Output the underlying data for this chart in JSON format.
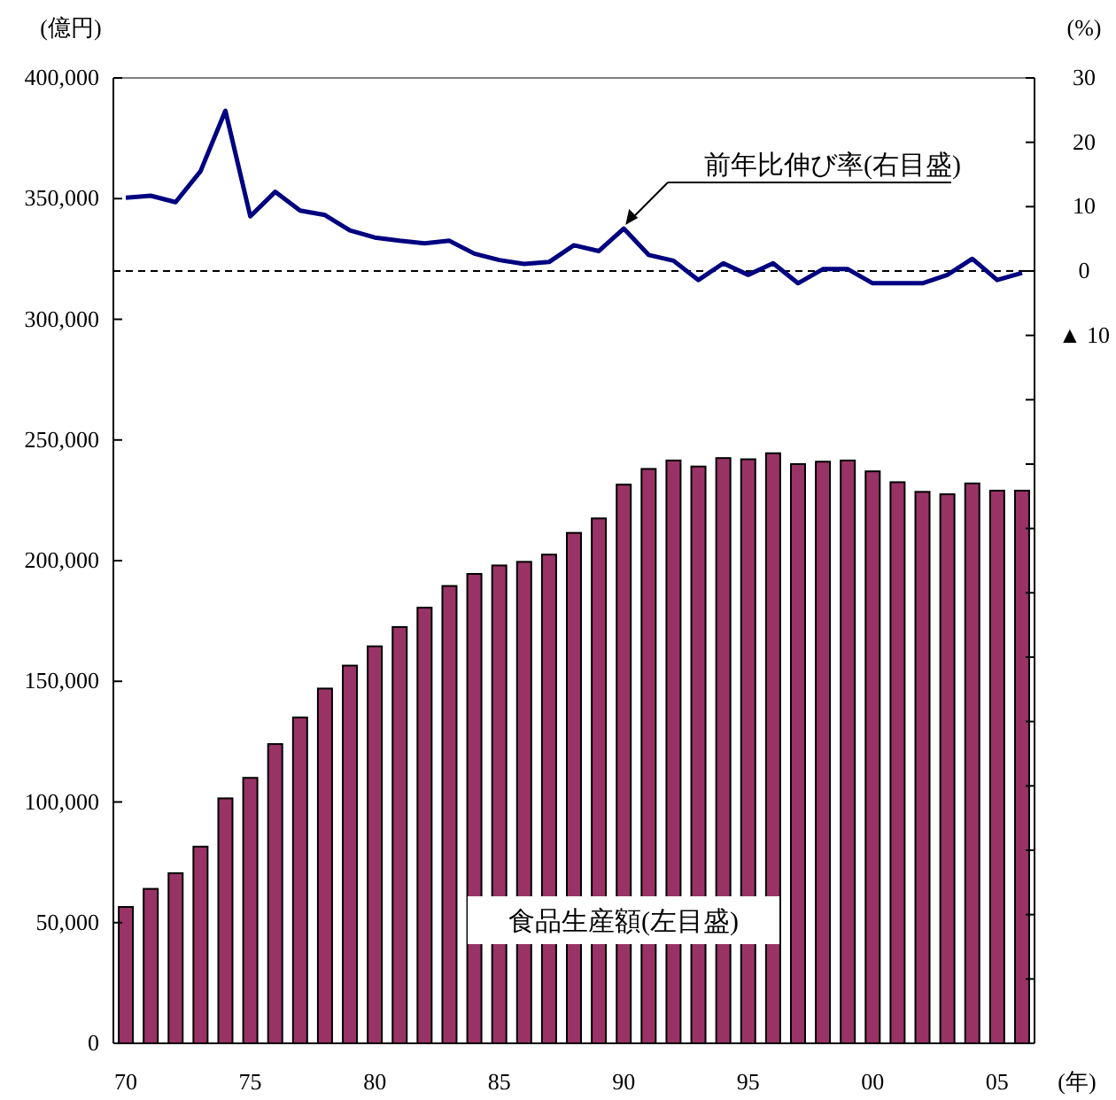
{
  "chart_data": {
    "type": "bar",
    "xlabel": "(年)",
    "ylabel": "(億円)",
    "y2label": "(%)",
    "categories": [
      "70",
      null,
      null,
      null,
      null,
      "75",
      null,
      null,
      null,
      null,
      "80",
      null,
      null,
      null,
      null,
      "85",
      null,
      null,
      null,
      null,
      "90",
      null,
      null,
      null,
      null,
      "95",
      null,
      null,
      null,
      null,
      "00",
      null,
      null,
      null,
      null,
      "05",
      null
    ],
    "series": [
      {
        "name": "食品生産額(左目盛)",
        "color": "#993366",
        "values": [
          56500,
          64000,
          70500,
          81500,
          101500,
          110000,
          124000,
          135000,
          147000,
          156500,
          164500,
          172500,
          180500,
          189500,
          194500,
          198000,
          199500,
          202500,
          211500,
          217500,
          231500,
          238000,
          241500,
          239000,
          242500,
          242000,
          244500,
          240000,
          241000,
          241500,
          237000,
          232500,
          228500,
          227500,
          232000,
          229000,
          229000
        ]
      },
      {
        "name": "前年比伸び率(右目盛)",
        "type": "line",
        "axis": "y2",
        "color": "#000080",
        "values": [
          11.4,
          11.7,
          10.7,
          15.5,
          24.9,
          8.5,
          12.3,
          9.4,
          8.7,
          6.3,
          5.2,
          4.7,
          4.3,
          4.7,
          2.7,
          1.7,
          1.1,
          1.4,
          4.0,
          3.1,
          6.6,
          2.5,
          1.6,
          -1.4,
          1.2,
          -0.6,
          1.2,
          -1.9,
          0.3,
          0.3,
          -1.9,
          -1.9,
          -1.9,
          -0.6,
          1.9,
          -1.4,
          -0.3
        ]
      }
    ],
    "ylim": [
      0,
      400000
    ],
    "yticks": [
      {
        "value": 0,
        "label": "0"
      },
      {
        "value": 50000,
        "label": "50,000"
      },
      {
        "value": 100000,
        "label": "100,000"
      },
      {
        "value": 150000,
        "label": "150,000"
      },
      {
        "value": 200000,
        "label": "200,000"
      },
      {
        "value": 250000,
        "label": "250,000"
      },
      {
        "value": 300000,
        "label": "300,000"
      },
      {
        "value": 350000,
        "label": "350,000"
      },
      {
        "value": 400000,
        "label": "400,000"
      }
    ],
    "y2lim": [
      -120,
      30
    ],
    "y2ticks": [
      30,
      20,
      10,
      0,
      {
        "value": -10,
        "label": "▲ 10"
      },
      {
        "value": -20,
        "label": null
      },
      {
        "value": -30,
        "label": null
      },
      {
        "value": -40,
        "label": null
      },
      {
        "value": -50,
        "label": null
      },
      {
        "value": -60,
        "label": null
      },
      {
        "value": -70,
        "label": null
      },
      {
        "value": -80,
        "label": null
      },
      {
        "value": -90,
        "label": null
      },
      {
        "value": -100,
        "label": null
      },
      {
        "value": -110,
        "label": null
      },
      {
        "value": -120,
        "label": null
      }
    ],
    "ref_lines": [
      {
        "axis": "y2",
        "value": 0,
        "line_style": "dashed",
        "color": "#000000"
      }
    ],
    "grid": false
  }
}
